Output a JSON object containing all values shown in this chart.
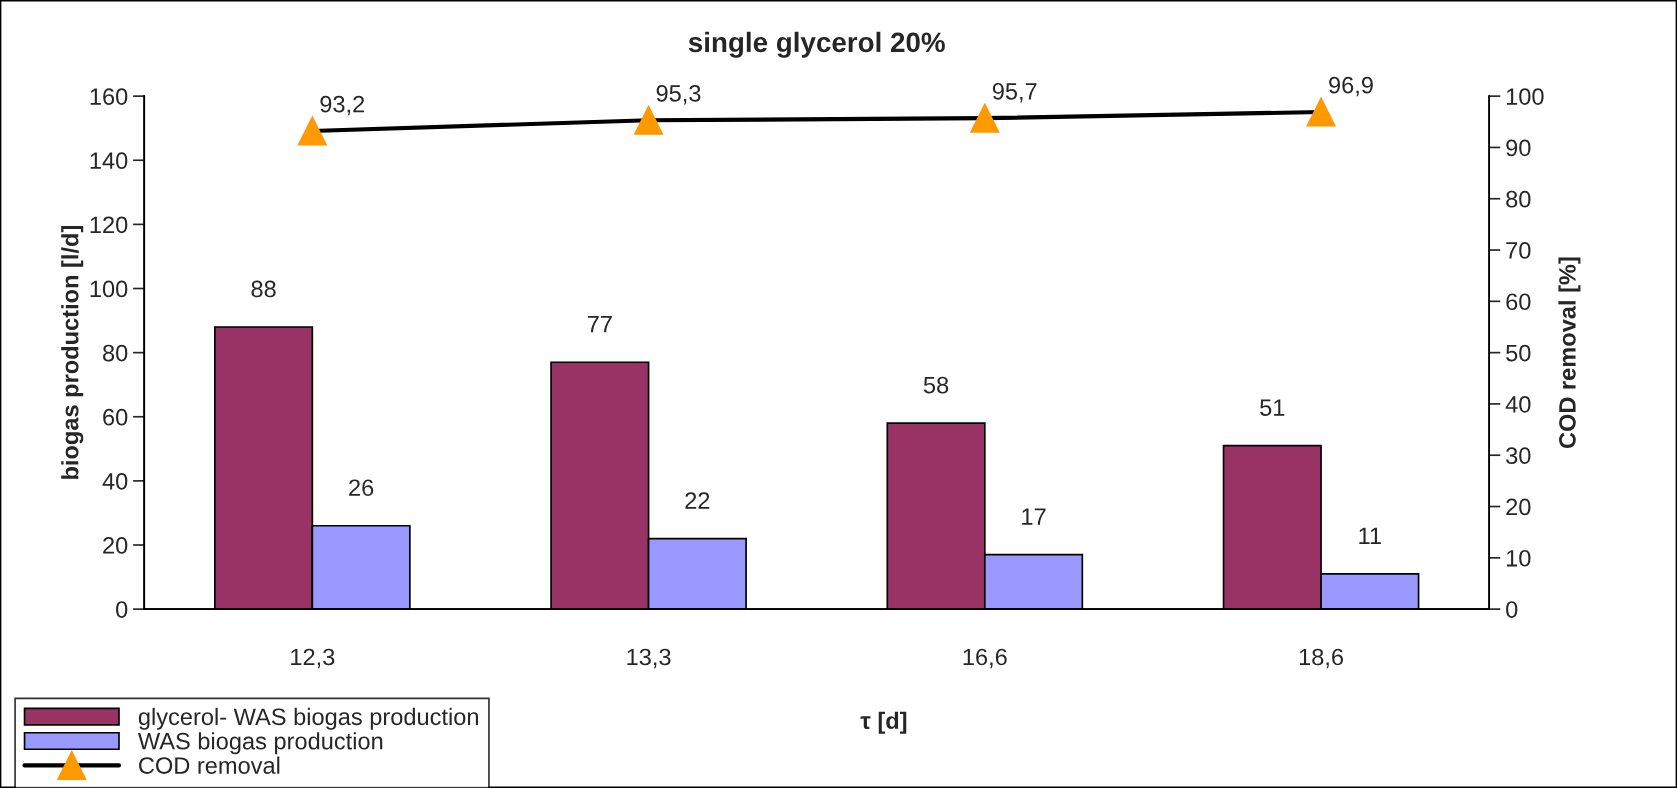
{
  "chart_data": {
    "type": "bar",
    "title": "single glycerol 20%",
    "xlabel": "τ [d]",
    "ylabel": "biogas production [l/d]",
    "y2label": "COD removal [%]",
    "categories": [
      "12,3",
      "13,3",
      "16,6",
      "18,6"
    ],
    "series": [
      {
        "name": "glycerol- WAS biogas production",
        "color": "#993366",
        "values": [
          88,
          77,
          58,
          51
        ],
        "data_labels": true
      },
      {
        "name": "WAS biogas production",
        "color": "#9999ff",
        "values": [
          26,
          22,
          17,
          11
        ],
        "data_labels": true
      },
      {
        "name": "COD removal",
        "type": "line",
        "axis": "y2",
        "color": "#000000",
        "colors": [
          "#ff9900",
          "#ff9900",
          "#ff9900",
          "#ff9900"
        ],
        "marker": "triangle",
        "values": [
          93.2,
          95.3,
          95.7,
          96.9
        ],
        "value_labels": [
          "93,2",
          "95,3",
          "95,7",
          "96,9"
        ]
      }
    ],
    "ylim": [
      0,
      160
    ],
    "yticks": [
      0,
      20,
      40,
      60,
      80,
      100,
      120,
      140,
      160
    ],
    "y2lim": [
      0,
      100
    ],
    "y2ticks": [
      0,
      10,
      20,
      30,
      40,
      50,
      60,
      70,
      80,
      90,
      100
    ],
    "grid": false,
    "legend": "bottom left"
  }
}
